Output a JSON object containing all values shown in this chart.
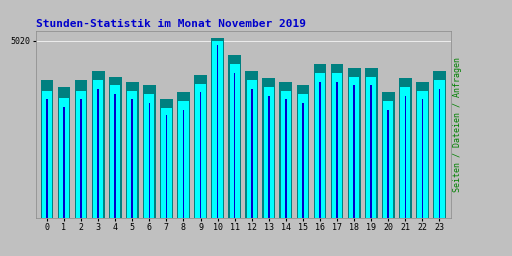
{
  "title": "Stunden-Statistik im Monat November 2019",
  "ylabel": "Seiten / Dateien / Anfragen",
  "xlabel_values": [
    0,
    1,
    2,
    3,
    4,
    5,
    6,
    7,
    8,
    9,
    10,
    11,
    12,
    13,
    14,
    15,
    16,
    17,
    18,
    19,
    20,
    21,
    22,
    23
  ],
  "ytick_label": "5020",
  "ytick_value": 5020,
  "bar_cyan": [
    3600,
    3400,
    3600,
    3900,
    3750,
    3600,
    3500,
    3100,
    3300,
    3800,
    5020,
    4350,
    3900,
    3700,
    3600,
    3500,
    4100,
    4100,
    4000,
    4000,
    3300,
    3700,
    3600,
    3900
  ],
  "bar_green": [
    3900,
    3700,
    3900,
    4150,
    4000,
    3850,
    3750,
    3350,
    3550,
    4050,
    5100,
    4600,
    4150,
    3950,
    3850,
    3750,
    4350,
    4350,
    4250,
    4250,
    3550,
    3950,
    3850,
    4150
  ],
  "bar_blue": [
    3350,
    3150,
    3350,
    3650,
    3500,
    3350,
    3250,
    2900,
    3050,
    3550,
    4900,
    4100,
    3650,
    3450,
    3350,
    3250,
    3850,
    3850,
    3750,
    3750,
    3050,
    3450,
    3350,
    3650
  ],
  "bar_color_cyan": "#00FFFF",
  "bar_color_green": "#008080",
  "bar_color_blue": "#0000CD",
  "bg_color": "#C0C0C0",
  "plot_bg": "#BEBEBE",
  "title_color": "#0000CC",
  "ylabel_color": "#008000",
  "ylim_max": 5300,
  "bar_width": 0.75
}
